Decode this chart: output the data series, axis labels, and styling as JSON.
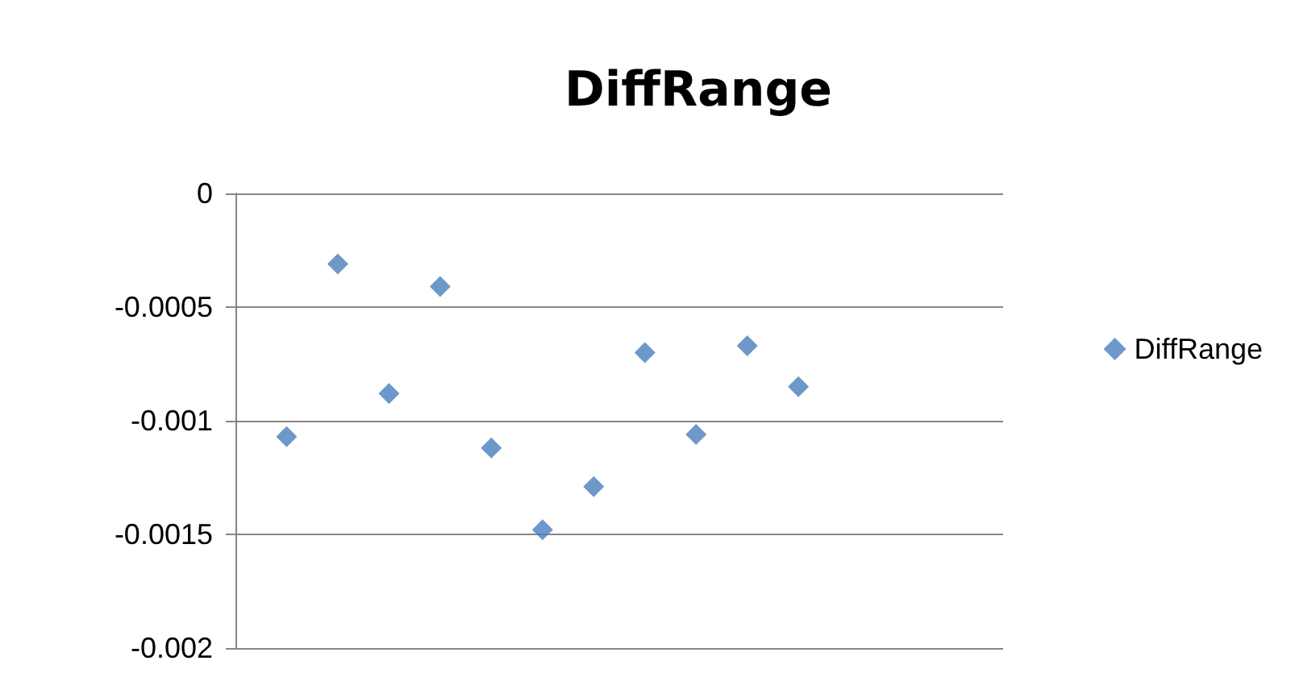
{
  "chart_data": {
    "type": "scatter",
    "title": "DiffRange",
    "categories": [
      null,
      null,
      null,
      null,
      null,
      null,
      null,
      null,
      null,
      null,
      null,
      null,
      null,
      null,
      null,
      null
    ],
    "series": [
      {
        "name": "DiffRange",
        "color": "#4a7ebb",
        "values": [
          null,
          -0.00107,
          -0.00031,
          -0.00088,
          -0.00041,
          -0.00112,
          -0.00148,
          -0.00129,
          -0.0007,
          -0.00106,
          -0.00067,
          -0.00085,
          null,
          null,
          null,
          null
        ]
      }
    ],
    "ylim": [
      -0.002,
      0
    ],
    "yticks": [
      -0.002,
      -0.0015,
      -0.001,
      -0.0005,
      0
    ],
    "grid": "y",
    "legend": "right",
    "marker": "diamond",
    "tick_labels": "y"
  }
}
